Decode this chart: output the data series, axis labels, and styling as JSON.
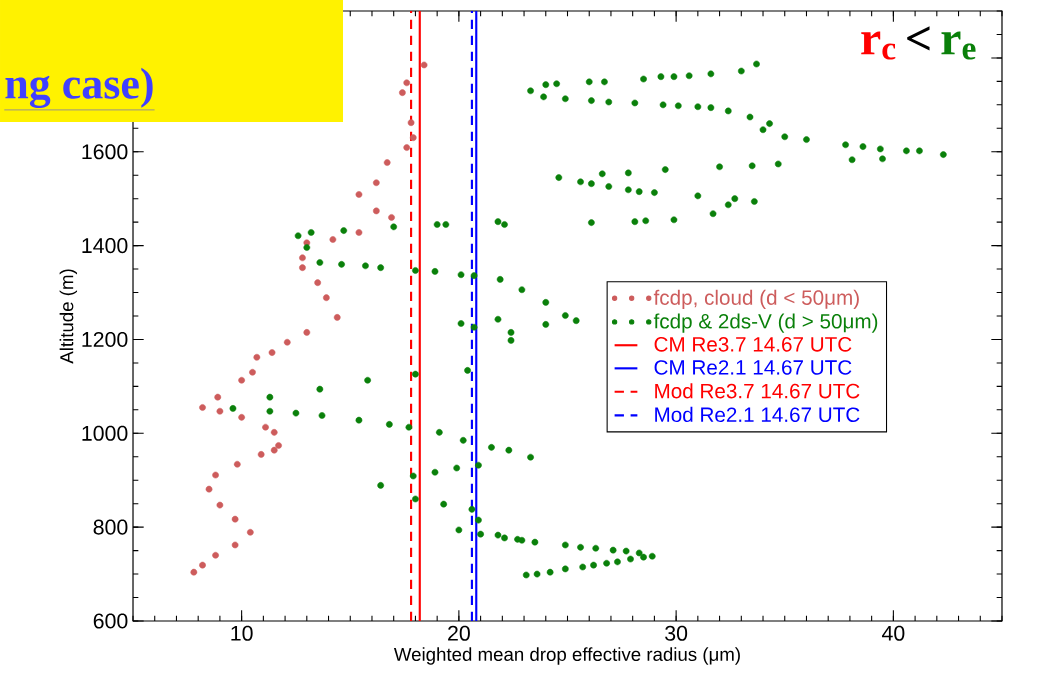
{
  "chart_data": {
    "type": "scatter",
    "title": "ng case)",
    "xlabel": "Weighted mean drop effective radius (μm)",
    "ylabel": "Altitude (m)",
    "annotations": [
      "r$_{c}$",
      "<",
      "r$_{e}$"
    ],
    "xlim": [
      5,
      45
    ],
    "ylim": [
      600,
      1900
    ],
    "xticks": [
      10,
      20,
      30,
      40
    ],
    "yticks": [
      600,
      800,
      1000,
      1200,
      1400,
      1600,
      {
        "value": 1800,
        "label": null
      }
    ],
    "marker": "circle",
    "legend": "right",
    "grid": false,
    "series": [
      {
        "name": "fcdp, cloud (d < 50μm)",
        "color": "#cd5c5c",
        "x": [
          18.4,
          17.6,
          17.4,
          17.8,
          17.9,
          17.6,
          16.7,
          16.2,
          15.4,
          16.2,
          16.9,
          15.4,
          14.2,
          13.0,
          12.8,
          12.8,
          13.5,
          13.9,
          14.4,
          13.0,
          12.1,
          11.4,
          10.7,
          10.5,
          10.0,
          8.9,
          8.2,
          9.0,
          10.0,
          11.1,
          11.5,
          11.7,
          11.5,
          10.9,
          9.8,
          8.8,
          8.5,
          9.0,
          9.7,
          10.4,
          9.7,
          8.8,
          8.2,
          7.8
        ],
        "values": [
          1785,
          1747,
          1726,
          1662,
          1630,
          1609,
          1577,
          1534,
          1509,
          1474,
          1460,
          1428,
          1413,
          1406,
          1374,
          1353,
          1321,
          1289,
          1247,
          1215,
          1194,
          1172,
          1162,
          1130,
          1113,
          1077,
          1055,
          1047,
          1034,
          1013,
          1002,
          974,
          964,
          955,
          934,
          911,
          881,
          847,
          817,
          789,
          762,
          740,
          719,
          704
        ]
      },
      {
        "name": "fcdp & 2ds-V (d > 50μm)",
        "color": "#0a800a",
        "x": [
          23.3,
          24.0,
          24.5,
          26.0,
          26.7,
          28.5,
          29.3,
          29.9,
          30.6,
          31.6,
          33.0,
          33.7,
          23.9,
          24.9,
          26.1,
          26.9,
          28.1,
          29.4,
          30.1,
          31.0,
          31.6,
          32.4,
          33.4,
          34.3,
          34.0,
          35.0,
          36.0,
          37.8,
          38.6,
          39.4,
          40.6,
          41.2,
          42.3,
          38.1,
          39.5,
          24.6,
          25.6,
          26.1,
          26.6,
          26.9,
          27.8,
          27.8,
          28.3,
          29.0,
          29.5,
          32.0,
          33.5,
          34.7,
          31.0,
          31.7,
          32.4,
          32.7,
          33.6,
          22.1,
          26.1,
          28.1,
          28.6,
          29.9,
          17.0,
          19.0,
          19.4,
          21.8,
          13.2,
          14.7,
          12.6,
          13.0,
          13.6,
          14.6,
          15.7,
          16.4,
          18.0,
          18.9,
          20.1,
          20.7,
          21.9,
          22.9,
          24.0,
          24.9,
          25.4,
          24.0,
          20.1,
          21.8,
          20.7,
          22.4,
          22.4,
          20.4,
          18.0,
          15.8,
          13.6,
          11.3,
          9.6,
          11.3,
          12.5,
          13.7,
          15.4,
          16.8,
          17.7,
          19.1,
          20.2,
          21.5,
          22.3,
          23.3,
          20.9,
          19.9,
          18.9,
          17.9,
          16.4,
          18.0,
          19.3,
          20.6,
          20.9,
          20.0,
          21.0,
          21.8,
          22.7,
          22.1,
          22.9,
          23.5,
          24.9,
          25.6,
          26.3,
          27.1,
          27.7,
          28.3,
          28.9,
          23.1,
          23.6,
          24.2,
          24.9,
          25.7,
          26.2,
          26.8,
          27.3,
          27.9,
          28.5
        ],
        "values": [
          1730,
          1743,
          1745,
          1749,
          1749,
          1755,
          1760,
          1760,
          1762,
          1766,
          1772,
          1787,
          1717,
          1713,
          1709,
          1706,
          1704,
          1700,
          1698,
          1696,
          1694,
          1687,
          1674,
          1660,
          1647,
          1632,
          1626,
          1615,
          1611,
          1606,
          1602,
          1602,
          1594,
          1583,
          1585,
          1545,
          1536,
          1532,
          1553,
          1526,
          1555,
          1519,
          1515,
          1513,
          1562,
          1568,
          1570,
          1574,
          1506,
          1468,
          1487,
          1500,
          1494,
          1445,
          1449,
          1451,
          1453,
          1455,
          1440,
          1445,
          1445,
          1451,
          1428,
          1432,
          1421,
          1396,
          1364,
          1360,
          1357,
          1353,
          1347,
          1345,
          1338,
          1336,
          1328,
          1306,
          1279,
          1251,
          1240,
          1232,
          1234,
          1243,
          1226,
          1215,
          1198,
          1134,
          1126,
          1113,
          1094,
          1077,
          1053,
          1047,
          1043,
          1038,
          1028,
          1019,
          1013,
          1002,
          985,
          970,
          964,
          949,
          932,
          926,
          917,
          909,
          889,
          860,
          849,
          838,
          815,
          794,
          785,
          783,
          774,
          777,
          772,
          768,
          762,
          757,
          755,
          751,
          749,
          745,
          738,
          698,
          700,
          704,
          711,
          715,
          719,
          723,
          726,
          732,
          736
        ]
      },
      {
        "name": "CM Re3.7 14.67 UTC",
        "type": "line",
        "marker": "none",
        "line_style": "solid",
        "color": "#ff0000",
        "x": [
          18.2,
          18.2
        ],
        "values": [
          600,
          1900
        ]
      },
      {
        "name": "CM Re2.1 14.67 UTC",
        "type": "line",
        "marker": "none",
        "line_style": "solid",
        "color": "#0000ff",
        "x": [
          20.8,
          20.8
        ],
        "values": [
          600,
          1900
        ]
      },
      {
        "name": "Mod Re3.7 14.67 UTC",
        "type": "line",
        "marker": "none",
        "line_style": "dashed",
        "color": "#ff0000",
        "x": [
          17.8,
          17.8
        ],
        "values": [
          600,
          1900
        ]
      },
      {
        "name": "Mod Re2.1 14.67 UTC",
        "type": "line",
        "marker": "none",
        "line_style": "dashed",
        "color": "#0000ff",
        "x": [
          20.6,
          20.6
        ],
        "values": [
          600,
          1900
        ]
      }
    ]
  }
}
